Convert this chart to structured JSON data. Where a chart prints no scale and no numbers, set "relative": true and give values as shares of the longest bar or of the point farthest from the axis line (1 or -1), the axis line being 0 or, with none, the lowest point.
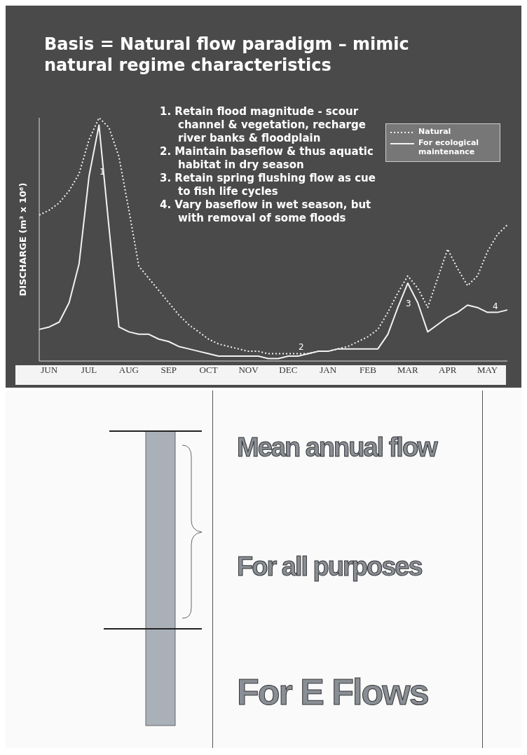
{
  "chart_data": [
    {
      "type": "line",
      "title": "Basis = Natural flow paradigm – mimic natural regime characteristics",
      "ylabel": "DISCHARGE (m³ x 10⁶)",
      "relative": true,
      "legend": "top right",
      "categories": [
        null,
        "JUN",
        null,
        null,
        null,
        "JUL",
        null,
        null,
        null,
        "AUG",
        null,
        null,
        null,
        "SEP",
        null,
        null,
        null,
        "OCT",
        null,
        null,
        null,
        "NOV",
        null,
        null,
        null,
        "DEC",
        null,
        null,
        null,
        "JAN",
        null,
        null,
        null,
        "FEB",
        null,
        null,
        null,
        "MAR",
        null,
        null,
        null,
        "APR",
        null,
        null,
        null,
        "MAY",
        null,
        null
      ],
      "series": [
        {
          "name": "Natural",
          "color": "#f2f2f2",
          "line_style": "dotted",
          "values": [
            0.6,
            0.62,
            0.65,
            0.7,
            0.77,
            0.91,
            1,
            0.96,
            0.84,
            0.62,
            0.39,
            0.34,
            0.29,
            0.24,
            0.19,
            0.15,
            0.12,
            0.09,
            0.07,
            0.06,
            0.05,
            0.04,
            0.04,
            0.03,
            0.03,
            0.03,
            0.03,
            0.03,
            0.04,
            0.04,
            0.05,
            0.06,
            0.08,
            0.1,
            0.13,
            0.2,
            0.28,
            0.35,
            0.3,
            0.22,
            0.34,
            0.46,
            0.38,
            0.31,
            0.35,
            0.45,
            0.52,
            0.56
          ]
        },
        {
          "name": "For ecological maintenance",
          "color": "#f2f2f2",
          "line_style": "solid",
          "values": [
            0.13,
            0.14,
            0.16,
            0.24,
            0.4,
            0.76,
            0.97,
            0.55,
            0.14,
            0.12,
            0.11,
            0.11,
            0.09,
            0.08,
            0.06,
            0.05,
            0.04,
            0.03,
            0.02,
            0.02,
            0.02,
            0.02,
            0.02,
            0.01,
            0.01,
            0.02,
            0.02,
            0.03,
            0.04,
            0.04,
            0.05,
            0.05,
            0.05,
            0.05,
            0.05,
            0.11,
            0.22,
            0.32,
            0.24,
            0.12,
            0.15,
            0.18,
            0.2,
            0.23,
            0.22,
            0.2,
            0.2,
            0.21
          ]
        }
      ],
      "annotations": [
        "1. Retain flood magnitude - scour channel & vegetation, recharge river banks & floodplain",
        "2. Maintain baseflow & thus aquatic habitat in dry season",
        "3. Retain spring flushing flow as cue to fish life cycles",
        "4. Vary baseflow in wet season, but with removal of some floods",
        "1",
        "2",
        "3",
        "4"
      ]
    },
    {
      "type": "other",
      "annotations": [
        "Mean annual flow",
        "For all purposes",
        "For E Flows"
      ]
    }
  ]
}
